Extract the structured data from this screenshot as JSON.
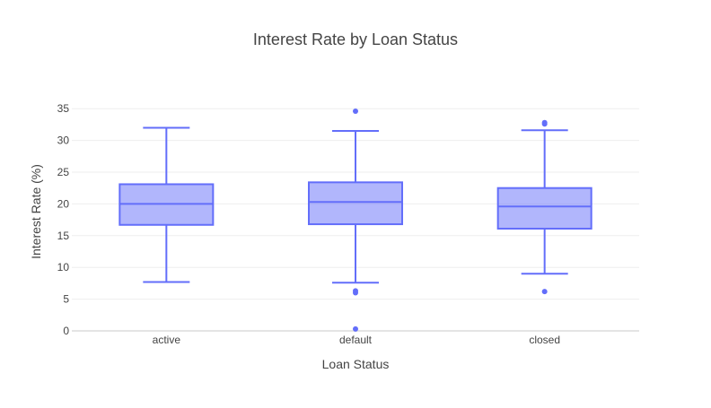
{
  "chart_data": {
    "type": "box",
    "title": "Interest Rate by Loan Status",
    "xlabel": "Loan Status",
    "ylabel": "Interest Rate (%)",
    "categories": [
      "active",
      "default",
      "closed"
    ],
    "ylim": [
      0,
      36
    ],
    "yticks": [
      0,
      5,
      10,
      15,
      20,
      25,
      30,
      35
    ],
    "grid": true,
    "color": "#636efa",
    "fill_color": "rgba(99,110,250,0.5)",
    "boxes": [
      {
        "category": "active",
        "lower_fence": 7.7,
        "q1": 16.7,
        "median": 20.0,
        "q3": 23.1,
        "upper_fence": 32.0,
        "outliers": []
      },
      {
        "category": "default",
        "lower_fence": 7.6,
        "q1": 16.8,
        "median": 20.3,
        "q3": 23.4,
        "upper_fence": 31.5,
        "outliers": [
          34.6,
          6.3,
          6.0,
          0.3
        ]
      },
      {
        "category": "closed",
        "lower_fence": 9.0,
        "q1": 16.1,
        "median": 19.6,
        "q3": 22.5,
        "upper_fence": 31.6,
        "outliers": [
          32.6,
          32.8,
          6.2
        ]
      }
    ]
  }
}
